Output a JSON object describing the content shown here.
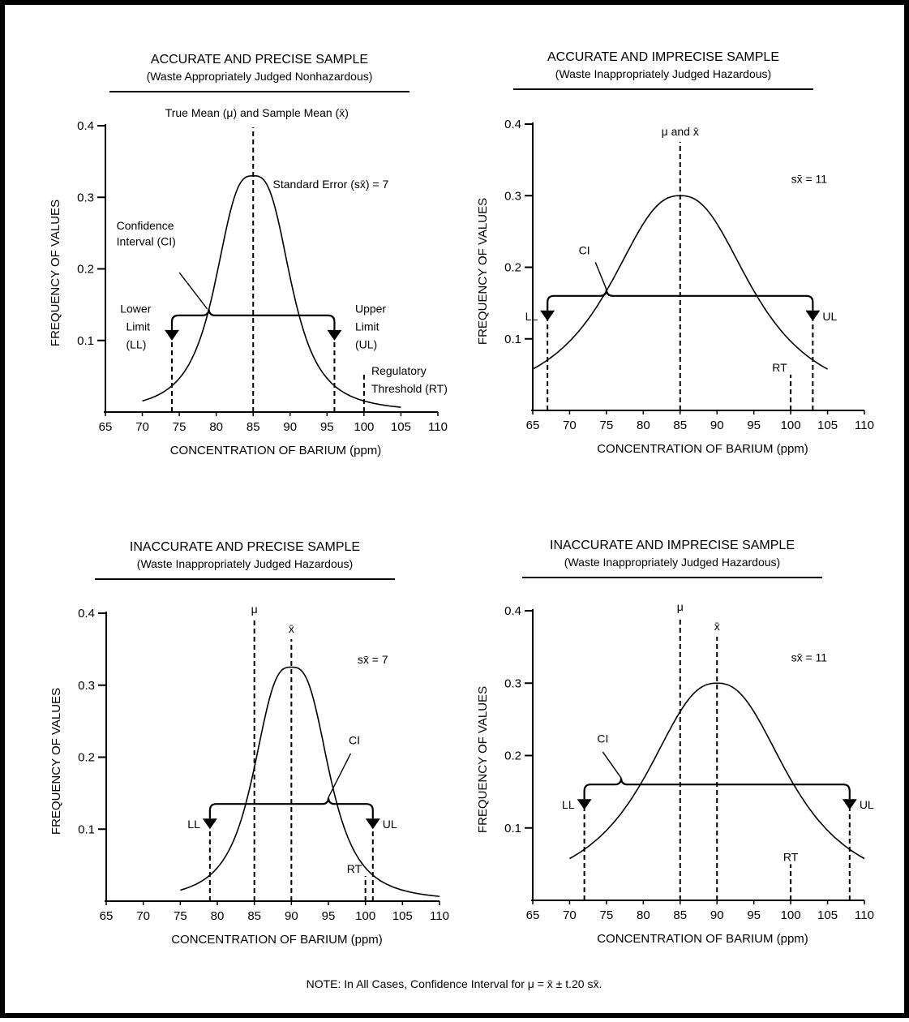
{
  "note_prefix": "NOTE: In All Cases, Confidence Interval for",
  "note_formula": "μ = x̄ ± t.20 sx̄.",
  "axis_xlabel": "CONCENTRATION OF BARIUM (ppm)",
  "axis_ylabel": "FREQUENCY OF VALUES",
  "chart_data": [
    {
      "type": "line",
      "title": "ACCURATE AND PRECISE SAMPLE",
      "subtitle": "(Waste Appropriately Judged Nonhazardous)",
      "xlabel": "CONCENTRATION OF BARIUM (ppm)",
      "ylabel": "FREQUENCY OF VALUES",
      "xlim": [
        65,
        110
      ],
      "ylim": [
        0,
        0.4
      ],
      "x_ticks": [
        65,
        70,
        75,
        80,
        85,
        90,
        95,
        100,
        105,
        110
      ],
      "y_ticks": [
        0.1,
        0.2,
        0.3,
        0.4
      ],
      "curve": {
        "mean": 85,
        "peak": 0.33,
        "x_from": 70,
        "x_to": 105
      },
      "true_mean": 85,
      "sample_mean": 85,
      "lower_limit": 74,
      "upper_limit": 96,
      "ci_level": 0.135,
      "regulatory_threshold": 100,
      "labels": {
        "mean": "True Mean (μ) and Sample Mean (x̄)",
        "se": "Standard Error (sx̄) = 7",
        "ci": [
          "Confidence",
          "Interval (CI)"
        ],
        "ll": [
          "Lower",
          "Limit",
          "(LL)"
        ],
        "ul": [
          "Upper",
          "Limit",
          "(UL)"
        ],
        "rt": [
          "Regulatory",
          "Threshold (RT)"
        ]
      }
    },
    {
      "type": "line",
      "title": "ACCURATE AND IMPRECISE SAMPLE",
      "subtitle": "(Waste Inappropriately Judged Hazardous)",
      "xlabel": "CONCENTRATION OF BARIUM (ppm)",
      "ylabel": "FREQUENCY OF VALUES",
      "xlim": [
        65,
        110
      ],
      "ylim": [
        0,
        0.4
      ],
      "x_ticks": [
        65,
        70,
        75,
        80,
        85,
        90,
        95,
        100,
        105,
        110
      ],
      "y_ticks": [
        0.1,
        0.2,
        0.3,
        0.4
      ],
      "curve": {
        "mean": 85,
        "peak": 0.3,
        "x_from": 65,
        "x_to": 105
      },
      "true_mean": 85,
      "sample_mean": 85,
      "lower_limit": 67,
      "upper_limit": 103,
      "ci_level": 0.16,
      "regulatory_threshold": 100,
      "labels": {
        "mean": "μ and x̄",
        "se": "sx̄ = 11",
        "ci": [
          "CI"
        ],
        "ll": [
          "LL"
        ],
        "ul": [
          "UL"
        ],
        "rt": [
          "RT"
        ]
      }
    },
    {
      "type": "line",
      "title": "INACCURATE AND PRECISE SAMPLE",
      "subtitle": "(Waste Inappropriately Judged Hazardous)",
      "xlabel": "CONCENTRATION OF BARIUM (ppm)",
      "ylabel": "FREQUENCY OF VALUES",
      "xlim": [
        65,
        110
      ],
      "ylim": [
        0,
        0.4
      ],
      "x_ticks": [
        65,
        70,
        75,
        80,
        85,
        90,
        95,
        100,
        105,
        110
      ],
      "y_ticks": [
        0.1,
        0.2,
        0.3,
        0.4
      ],
      "curve": {
        "mean": 90,
        "peak": 0.325,
        "x_from": 75,
        "x_to": 110
      },
      "true_mean": 85,
      "sample_mean": 90,
      "lower_limit": 79,
      "upper_limit": 101,
      "ci_level": 0.135,
      "regulatory_threshold": 100,
      "labels": {
        "mu": "μ",
        "xbar": "x̄",
        "se": "sx̄ = 7",
        "ci": [
          "CI"
        ],
        "ll": [
          "LL"
        ],
        "ul": [
          "UL"
        ],
        "rt": [
          "RT"
        ]
      }
    },
    {
      "type": "line",
      "title": "INACCURATE AND IMPRECISE SAMPLE",
      "subtitle": "(Waste Inappropriately Judged Hazardous)",
      "xlabel": "CONCENTRATION OF BARIUM (ppm)",
      "ylabel": "FREQUENCY OF VALUES",
      "xlim": [
        65,
        110
      ],
      "ylim": [
        0,
        0.4
      ],
      "x_ticks": [
        65,
        70,
        75,
        80,
        85,
        90,
        95,
        100,
        105,
        110
      ],
      "y_ticks": [
        0.1,
        0.2,
        0.3,
        0.4
      ],
      "curve": {
        "mean": 90,
        "peak": 0.3,
        "x_from": 70,
        "x_to": 110
      },
      "true_mean": 85,
      "sample_mean": 90,
      "lower_limit": 72,
      "upper_limit": 108,
      "ci_level": 0.16,
      "regulatory_threshold": 100,
      "labels": {
        "mu": "μ",
        "xbar": "x̄",
        "se": "sx̄ = 11",
        "ci": [
          "CI"
        ],
        "ll": [
          "LL"
        ],
        "ul": [
          "UL"
        ],
        "rt": [
          "RT"
        ]
      }
    }
  ]
}
